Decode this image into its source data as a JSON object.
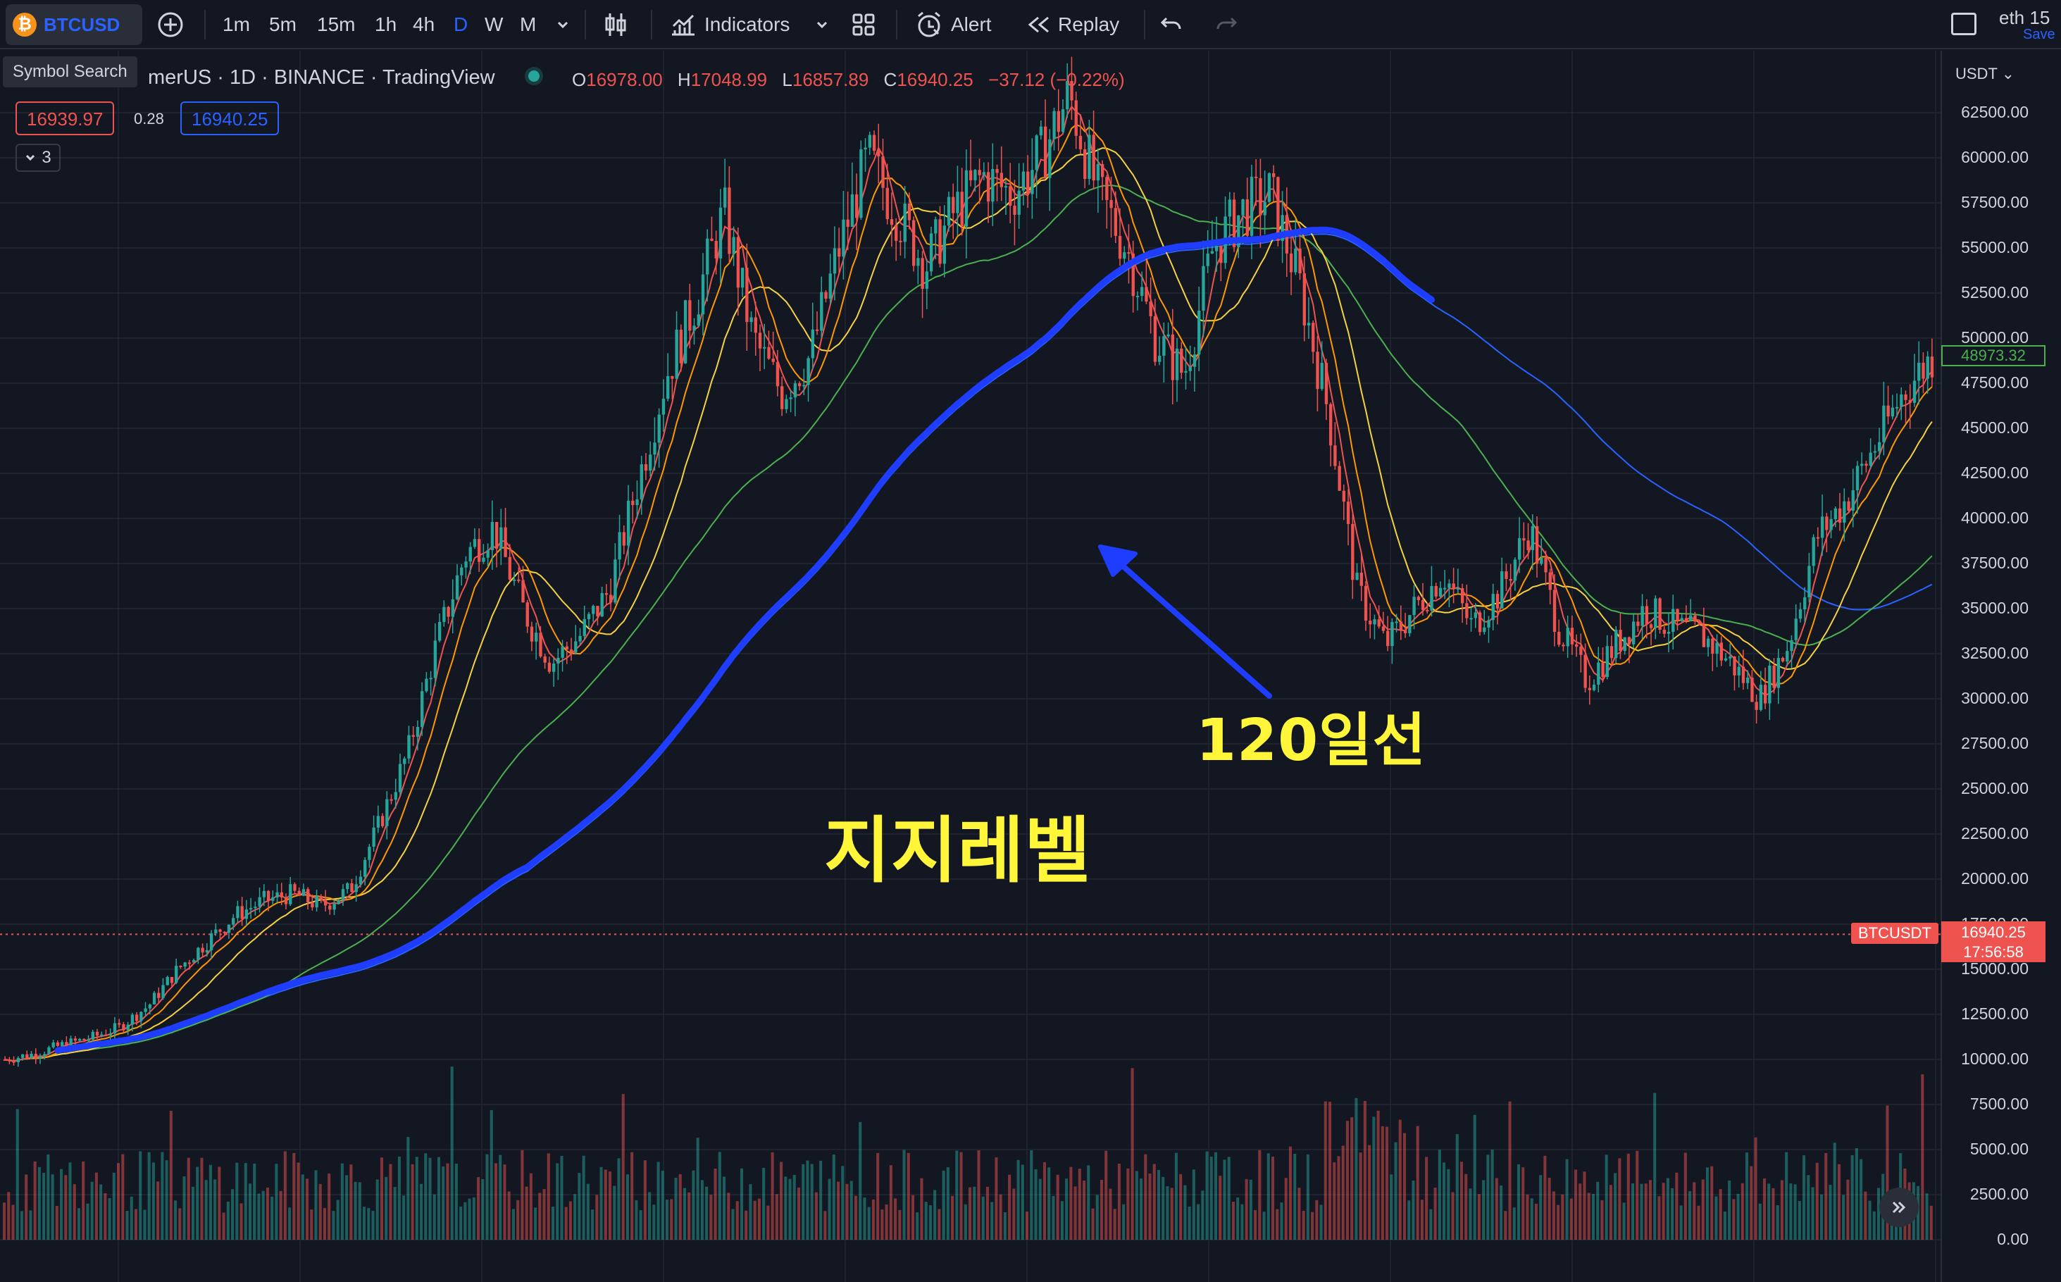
{
  "toolbar": {
    "symbol": "BTCUSD",
    "btc_glyph": "₿",
    "timeframes": [
      "1m",
      "5m",
      "15m",
      "1h",
      "4h",
      "D",
      "W",
      "M"
    ],
    "active_timeframe": "D",
    "indicators_label": "Indicators",
    "alert_label": "Alert",
    "replay_label": "Replay",
    "right_text": "eth 15",
    "save_label": "Save"
  },
  "legend": {
    "symbol_search_tooltip": "Symbol Search",
    "title": "merUS · 1D · BINANCE · TradingView",
    "o_label": "O",
    "o_value": "16978.00",
    "h_label": "H",
    "h_value": "17048.99",
    "l_label": "L",
    "l_value": "16857.89",
    "c_label": "C",
    "c_value": "16940.25",
    "change": "−37.12 (−0.22%)",
    "bid": "16939.97",
    "spread": "0.28",
    "ask": "16940.25",
    "collapsed_count": "3"
  },
  "axis": {
    "currency": "USDT",
    "labels": [
      "62500.00",
      "60000.00",
      "57500.00",
      "55000.00",
      "52500.00",
      "50000.00",
      "47500.00",
      "45000.00",
      "42500.00",
      "40000.00",
      "37500.00",
      "35000.00",
      "32500.00",
      "30000.00",
      "27500.00",
      "25000.00",
      "22500.00",
      "20000.00",
      "17500.00",
      "15000.00",
      "12500.00",
      "10000.00",
      "7500.00",
      "5000.00",
      "2500.00",
      "0.00"
    ],
    "ma_value": "48973.32",
    "last_price": "16940.25",
    "countdown": "17:56:58",
    "last_symbol": "BTCUSDT"
  },
  "annotations": {
    "ma_label": "120일선",
    "support_label": "지지레벨"
  },
  "colors": {
    "background": "#131722",
    "up": "#26a69a",
    "down": "#ef5350",
    "annotation_yellow": "#fff63a",
    "annotation_blue": "#1f3dff",
    "ma_blue": "#2962ff",
    "ma_green": "#4caf50",
    "ma_yellow": "#f5d142",
    "ma_orange": "#ff9800"
  },
  "chart_data": {
    "type": "candlestick",
    "ylim": [
      0,
      65000
    ],
    "price_series": [
      10000,
      10300,
      10800,
      11200,
      11800,
      13000,
      15000,
      16500,
      18000,
      18800,
      19200,
      18500,
      19400,
      23000,
      27000,
      33000,
      38000,
      39500,
      35000,
      32000,
      33500,
      36000,
      42000,
      48000,
      52000,
      57000,
      50000,
      47000,
      49000,
      55000,
      60000,
      57000,
      54000,
      57000,
      59000,
      58000,
      60000,
      63500,
      58000,
      55000,
      50000,
      48000,
      55000,
      57000,
      58000,
      53000,
      46000,
      36000,
      33000,
      35000,
      37000,
      34000,
      36000,
      39500,
      34000,
      31000,
      33000,
      35000,
      34000,
      33500,
      32000,
      30000,
      33000,
      39000,
      41000,
      44000,
      47000,
      49000
    ]
  }
}
